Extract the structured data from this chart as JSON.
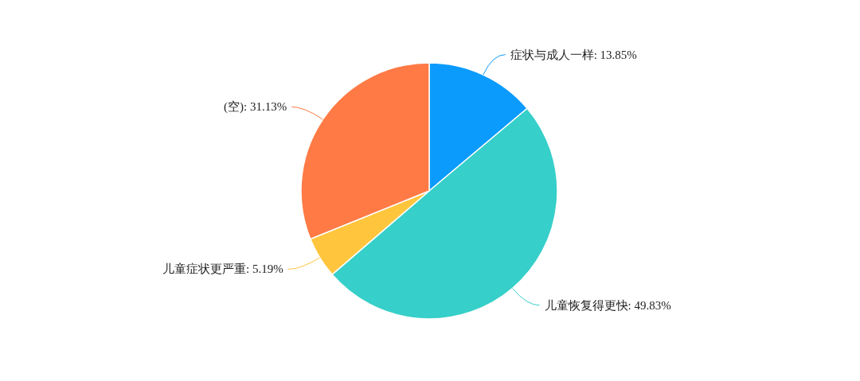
{
  "chart_data": {
    "type": "pie",
    "categories": [
      "症状与成人一样",
      "儿童恢复得更快",
      "儿童症状更严重",
      "(空)"
    ],
    "values": [
      13.85,
      49.83,
      5.19,
      31.13
    ],
    "value_labels": [
      "13.85%",
      "49.83%",
      "5.19%",
      "31.13%"
    ],
    "colors": [
      "#0b9bfd",
      "#36cfc9",
      "#ffc53d",
      "#ff7a45"
    ]
  }
}
